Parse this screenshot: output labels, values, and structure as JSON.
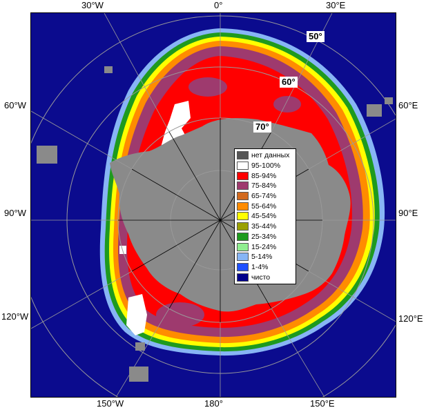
{
  "map": {
    "edge_labels": {
      "top": [
        "30°W",
        "0°",
        "30°E"
      ],
      "left": [
        "60°W",
        "90°W",
        "120°W"
      ],
      "right": [
        "60°E",
        "90°E",
        "120°E"
      ],
      "bottom": [
        "150°W",
        "180°",
        "150°E"
      ]
    },
    "lat_labels": [
      "50°",
      "60°",
      "70°"
    ],
    "colors": {
      "ocean": "#0b0b8e",
      "land": "#8a8a8a",
      "grid": "#9a9a9a"
    }
  },
  "legend": {
    "items": [
      {
        "label": "нет данных",
        "color": "#555555"
      },
      {
        "label": "95-100%",
        "color": "#ffffff"
      },
      {
        "label": "85-94%",
        "color": "#ff0000"
      },
      {
        "label": "75-84%",
        "color": "#9e3a6e"
      },
      {
        "label": "65-74%",
        "color": "#d2691e"
      },
      {
        "label": "55-64%",
        "color": "#ff8c00"
      },
      {
        "label": "45-54%",
        "color": "#ffff00"
      },
      {
        "label": "35-44%",
        "color": "#9aa000"
      },
      {
        "label": "25-34%",
        "color": "#1e9a1e"
      },
      {
        "label": "15-24%",
        "color": "#90ee90"
      },
      {
        "label": "5-14%",
        "color": "#87b5f5"
      },
      {
        "label": "1-4%",
        "color": "#1e50ff"
      },
      {
        "label": "чисто",
        "color": "#00008b"
      }
    ]
  }
}
